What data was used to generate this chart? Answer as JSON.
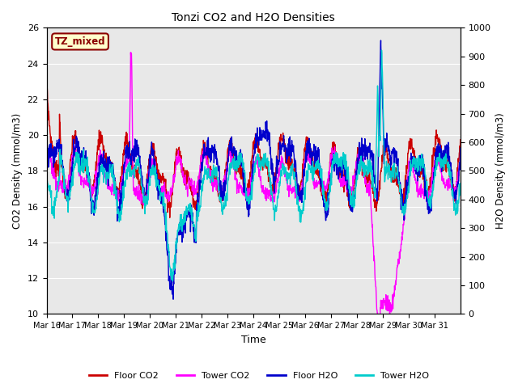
{
  "title": "Tonzi CO2 and H2O Densities",
  "xlabel": "Time",
  "ylabel_left": "CO2 Density (mmol/m3)",
  "ylabel_right": "H2O Density (mmol/m3)",
  "annotation_text": "TZ_mixed",
  "annotation_color": "#8B0000",
  "annotation_bg": "#FFFFCC",
  "annotation_border": "#8B0000",
  "ylim_left": [
    10,
    26
  ],
  "ylim_right": [
    0,
    1000
  ],
  "yticks_left": [
    10,
    12,
    14,
    16,
    18,
    20,
    22,
    24,
    26
  ],
  "yticks_right": [
    0,
    100,
    200,
    300,
    400,
    500,
    600,
    700,
    800,
    900,
    1000
  ],
  "xtick_labels": [
    "Mar 16",
    "Mar 17",
    "Mar 18",
    "Mar 19",
    "Mar 20",
    "Mar 21",
    "Mar 22",
    "Mar 23",
    "Mar 24",
    "Mar 25",
    "Mar 26",
    "Mar 27",
    "Mar 28",
    "Mar 29",
    "Mar 30",
    "Mar 31"
  ],
  "colors": {
    "floor_co2": "#CC0000",
    "tower_co2": "#FF00FF",
    "floor_h2o": "#0000CC",
    "tower_h2o": "#00CCCC"
  },
  "bg_color": "#E8E8E8",
  "line_width": 1.0
}
